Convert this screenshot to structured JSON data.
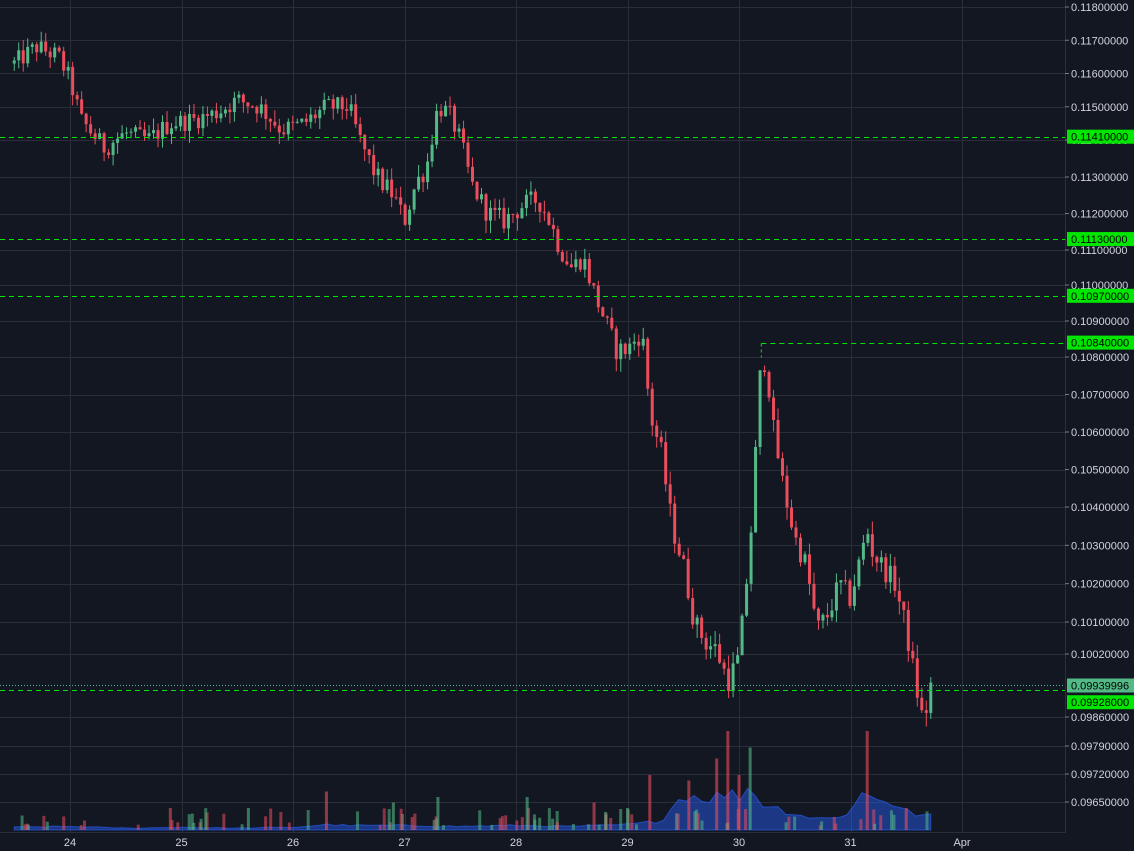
{
  "chart_data": {
    "type": "candlestick",
    "x_ticks": [
      "24",
      "25",
      "26",
      "27",
      "28",
      "29",
      "30",
      "31",
      "Apr"
    ],
    "y_ticks": [
      "0.11800000",
      "0.11700000",
      "0.11600000",
      "0.11500000",
      "0.11400000",
      "0.11300000",
      "0.11200000",
      "0.11100000",
      "0.11000000",
      "0.10900000",
      "0.10800000",
      "0.10700000",
      "0.10600000",
      "0.10500000",
      "0.10400000",
      "0.10300000",
      "0.10200000",
      "0.10100000",
      "0.10020000",
      "0.09860000",
      "0.09790000",
      "0.09720000",
      "0.09650000"
    ],
    "y_tick_values": [
      0.118,
      0.117,
      0.116,
      0.115,
      0.114,
      0.113,
      0.112,
      0.111,
      0.11,
      0.109,
      0.108,
      0.107,
      0.106,
      0.105,
      0.104,
      0.103,
      0.102,
      0.101,
      0.1002,
      0.0986,
      0.0979,
      0.0972,
      0.0965
    ],
    "horizontal_lines": [
      {
        "label": "0.11410000",
        "value": 0.1141
      },
      {
        "label": "0.11130000",
        "value": 0.1113
      },
      {
        "label": "0.10970000",
        "value": 0.1097
      },
      {
        "label": "0.10840000",
        "value": 0.1084
      },
      {
        "label": "0.09928000",
        "value": 0.09928
      }
    ],
    "last_price": {
      "label": "0.09939996",
      "value": 0.09939996
    },
    "grid": true,
    "colors": {
      "background": "#131722",
      "grid": "#2a2e39",
      "up": "#53b987",
      "down": "#eb4d5c",
      "level_line": "#00e600",
      "level_tag": "#00e600",
      "last_price_tag": "#53b987",
      "volume_area": "#2962ff",
      "axis_text": "#d1d4dc"
    },
    "price_path": [
      [
        23.5,
        0.1163
      ],
      [
        23.7,
        0.1168
      ],
      [
        23.9,
        0.1165
      ],
      [
        24.0,
        0.1158
      ],
      [
        24.1,
        0.1146
      ],
      [
        24.3,
        0.1138
      ],
      [
        24.5,
        0.1142
      ],
      [
        24.7,
        0.114
      ],
      [
        24.9,
        0.1145
      ],
      [
        25.1,
        0.1146
      ],
      [
        25.3,
        0.1148
      ],
      [
        25.5,
        0.1152
      ],
      [
        25.7,
        0.115
      ],
      [
        25.9,
        0.1143
      ],
      [
        26.1,
        0.1145
      ],
      [
        26.3,
        0.115
      ],
      [
        26.5,
        0.115
      ],
      [
        26.6,
        0.114
      ],
      [
        26.75,
        0.113
      ],
      [
        26.9,
        0.1125
      ],
      [
        27.0,
        0.1118
      ],
      [
        27.1,
        0.1128
      ],
      [
        27.2,
        0.1133
      ],
      [
        27.3,
        0.115
      ],
      [
        27.4,
        0.1148
      ],
      [
        27.5,
        0.114
      ],
      [
        27.6,
        0.1128
      ],
      [
        27.75,
        0.112
      ],
      [
        27.9,
        0.1118
      ],
      [
        28.05,
        0.1122
      ],
      [
        28.2,
        0.1124
      ],
      [
        28.3,
        0.1118
      ],
      [
        28.4,
        0.111
      ],
      [
        28.5,
        0.1105
      ],
      [
        28.6,
        0.1108
      ],
      [
        28.7,
        0.1098
      ],
      [
        28.8,
        0.109
      ],
      [
        28.9,
        0.1082
      ],
      [
        29.0,
        0.1082
      ],
      [
        29.1,
        0.1086
      ],
      [
        29.15,
        0.1083
      ],
      [
        29.2,
        0.1065
      ],
      [
        29.3,
        0.1055
      ],
      [
        29.4,
        0.1035
      ],
      [
        29.5,
        0.1025
      ],
      [
        29.6,
        0.101
      ],
      [
        29.7,
        0.1005
      ],
      [
        29.8,
        0.1003
      ],
      [
        29.9,
        0.0995
      ],
      [
        30.0,
        0.1001
      ],
      [
        30.1,
        0.103
      ],
      [
        30.2,
        0.108
      ],
      [
        30.25,
        0.1078
      ],
      [
        30.3,
        0.1062
      ],
      [
        30.4,
        0.1045
      ],
      [
        30.5,
        0.1032
      ],
      [
        30.6,
        0.1025
      ],
      [
        30.7,
        0.1008
      ],
      [
        30.8,
        0.1012
      ],
      [
        30.9,
        0.102
      ],
      [
        31.0,
        0.1016
      ],
      [
        31.1,
        0.1028
      ],
      [
        31.15,
        0.1034
      ],
      [
        31.2,
        0.1028
      ],
      [
        31.3,
        0.1024
      ],
      [
        31.4,
        0.102
      ],
      [
        31.5,
        0.1008
      ],
      [
        31.6,
        0.0992
      ],
      [
        31.65,
        0.0985
      ],
      [
        31.7,
        0.099
      ],
      [
        31.72,
        0.0994
      ]
    ],
    "volume_path": [
      [
        23.5,
        0.03
      ],
      [
        24.0,
        0.04
      ],
      [
        24.5,
        0.02
      ],
      [
        25.0,
        0.03
      ],
      [
        25.5,
        0.02
      ],
      [
        26.0,
        0.03
      ],
      [
        26.3,
        0.06
      ],
      [
        26.5,
        0.05
      ],
      [
        27.0,
        0.05
      ],
      [
        27.5,
        0.04
      ],
      [
        28.0,
        0.05
      ],
      [
        28.5,
        0.04
      ],
      [
        29.0,
        0.06
      ],
      [
        29.3,
        0.1
      ],
      [
        29.5,
        0.4
      ],
      [
        29.7,
        0.35
      ],
      [
        29.9,
        0.4
      ],
      [
        30.0,
        0.38
      ],
      [
        30.1,
        0.48
      ],
      [
        30.2,
        0.3
      ],
      [
        30.4,
        0.22
      ],
      [
        30.6,
        0.15
      ],
      [
        30.8,
        0.12
      ],
      [
        31.0,
        0.2
      ],
      [
        31.1,
        0.4
      ],
      [
        31.3,
        0.35
      ],
      [
        31.5,
        0.2
      ],
      [
        31.7,
        0.15
      ]
    ],
    "volume_spikes": [
      [
        29.2,
        0.5,
        "down"
      ],
      [
        29.55,
        0.45,
        "down"
      ],
      [
        29.8,
        0.65,
        "down"
      ],
      [
        29.9,
        0.9,
        "down"
      ],
      [
        30.0,
        0.5,
        "down"
      ],
      [
        30.1,
        0.75,
        "up"
      ],
      [
        31.15,
        0.9,
        "down"
      ],
      [
        31.5,
        0.2,
        "down"
      ],
      [
        26.3,
        0.35,
        "down"
      ],
      [
        27.3,
        0.3,
        "up"
      ],
      [
        28.1,
        0.3,
        "up"
      ],
      [
        28.7,
        0.25,
        "down"
      ],
      [
        29.0,
        0.2,
        "up"
      ],
      [
        26.9,
        0.25,
        "up"
      ],
      [
        24.9,
        0.2,
        "down"
      ],
      [
        25.6,
        0.2,
        "up"
      ]
    ]
  }
}
